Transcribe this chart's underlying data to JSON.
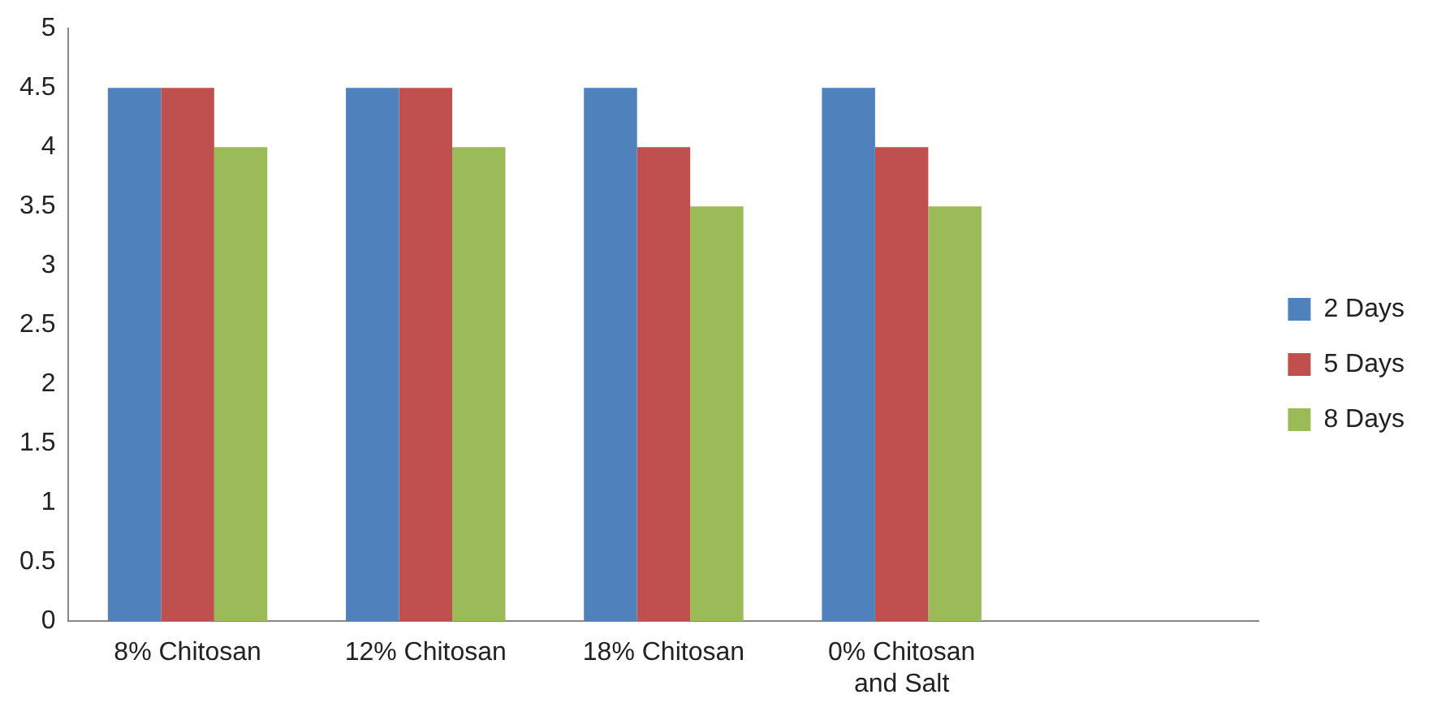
{
  "chart_data": {
    "type": "bar",
    "categories": [
      "8% Chitosan",
      "12% Chitosan",
      "18% Chitosan",
      "0% Chitosan and Salt",
      null
    ],
    "series": [
      {
        "name": "2 Days",
        "color": "#4f81bd",
        "values": [
          4.5,
          4.5,
          4.5,
          4.5,
          null
        ]
      },
      {
        "name": "5 Days",
        "color": "#c0504d",
        "values": [
          4.5,
          4.5,
          4,
          4,
          null
        ]
      },
      {
        "name": "8 Days",
        "color": "#9bbb59",
        "values": [
          4,
          4,
          3.5,
          3.5,
          null
        ]
      }
    ],
    "ylim": [
      0,
      5
    ],
    "yticks": [
      0,
      0.5,
      1,
      1.5,
      2,
      2.5,
      3,
      3.5,
      4,
      4.5,
      5
    ],
    "grid": false,
    "legend": "right"
  }
}
